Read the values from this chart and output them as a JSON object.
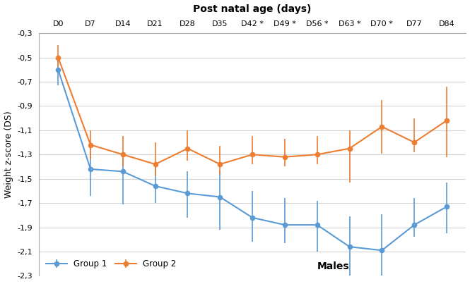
{
  "title": "Post natal age (days)",
  "ylabel": "Weight z-score (DS)",
  "xlabel_text": "Males",
  "x_labels": [
    "D0",
    "D7",
    "D14",
    "D21",
    "D28",
    "D35",
    "D42 *",
    "D49 *",
    "D56 *",
    "D63 *",
    "D70 *",
    "D77",
    "D84"
  ],
  "x_positions": [
    0,
    1,
    2,
    3,
    4,
    5,
    6,
    7,
    8,
    9,
    10,
    11,
    12
  ],
  "group1_y": [
    -0.6,
    -1.42,
    -1.44,
    -1.56,
    -1.62,
    -1.65,
    -1.82,
    -1.88,
    -1.88,
    -2.06,
    -2.09,
    -1.88,
    -1.73
  ],
  "group1_err_upper": [
    0.1,
    0.22,
    0.15,
    0.18,
    0.18,
    0.22,
    0.22,
    0.22,
    0.2,
    0.25,
    0.3,
    0.22,
    0.2
  ],
  "group1_err_lower": [
    0.13,
    0.22,
    0.27,
    0.14,
    0.2,
    0.27,
    0.2,
    0.15,
    0.22,
    0.4,
    0.25,
    0.1,
    0.22
  ],
  "group2_y": [
    -0.5,
    -1.22,
    -1.3,
    -1.38,
    -1.25,
    -1.38,
    -1.3,
    -1.32,
    -1.3,
    -1.25,
    -1.07,
    -1.2,
    -1.02
  ],
  "group2_err_upper": [
    0.1,
    0.12,
    0.15,
    0.18,
    0.15,
    0.15,
    0.15,
    0.15,
    0.15,
    0.15,
    0.22,
    0.2,
    0.28
  ],
  "group2_err_lower": [
    0.08,
    0.12,
    0.1,
    0.1,
    0.1,
    0.08,
    0.08,
    0.08,
    0.08,
    0.28,
    0.22,
    0.08,
    0.3
  ],
  "group1_color": "#5B9BD5",
  "group2_color": "#ED7D31",
  "ylim": [
    -2.3,
    -0.3
  ],
  "yticks": [
    -2.3,
    -2.1,
    -1.9,
    -1.7,
    -1.5,
    -1.3,
    -1.1,
    -0.9,
    -0.7,
    -0.5,
    -0.3
  ],
  "ytick_labels": [
    "-2,3",
    "-2,1",
    "-1,9",
    "-1,7",
    "-1,5",
    "-1,3",
    "-1,1",
    "-0,9",
    "-0,7",
    "-0,5",
    "-0,3"
  ],
  "legend_group1": "Group 1",
  "legend_group2": "Group 2",
  "background_color": "#FFFFFF",
  "grid_color": "#D3D3D3"
}
